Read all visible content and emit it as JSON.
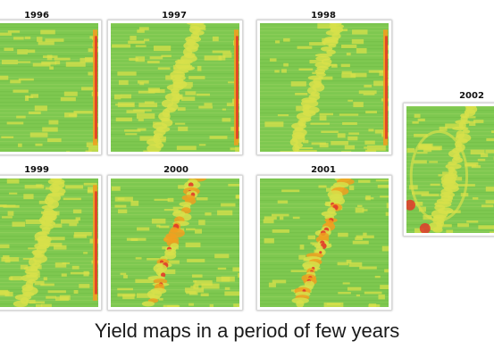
{
  "figure": {
    "caption": "Yield maps in a period of few years",
    "maps": [
      {
        "year": "1996"
      },
      {
        "year": "1997"
      },
      {
        "year": "1998"
      },
      {
        "year": "1999"
      },
      {
        "year": "2000"
      },
      {
        "year": "2001"
      },
      {
        "year": "2002"
      }
    ],
    "colors": {
      "high_yield": "#7ec850",
      "medium_yield": "#d8e04a",
      "low_yield": "#f0a020",
      "very_low_yield": "#e2382a"
    }
  }
}
